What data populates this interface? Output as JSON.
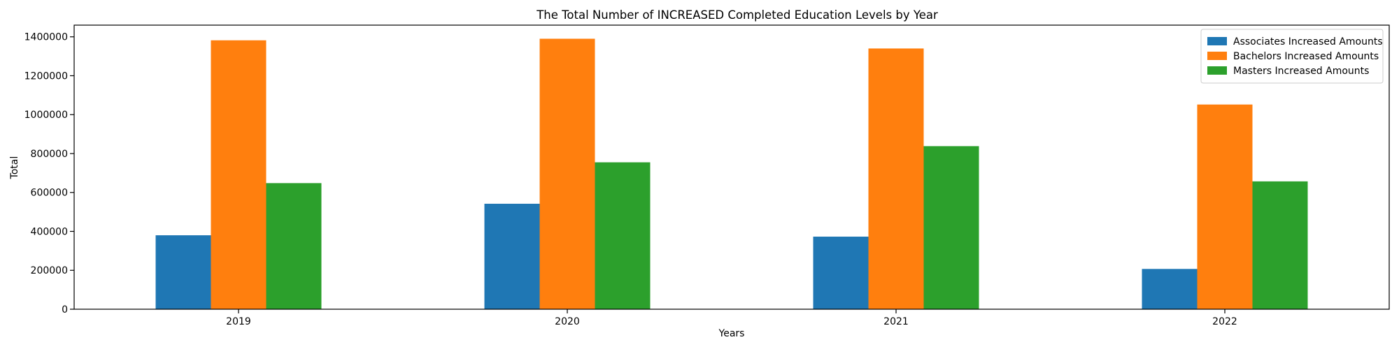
{
  "chart_data": {
    "type": "bar",
    "title": "The Total Number of INCREASED Completed Education Levels by Year",
    "xlabel": "Years",
    "ylabel": "Total",
    "categories": [
      "2019",
      "2020",
      "2021",
      "2022"
    ],
    "series": [
      {
        "name": "Associates Increased Amounts",
        "color": "#1f77b4",
        "values": [
          380000,
          542000,
          373000,
          207000
        ]
      },
      {
        "name": "Bachelors Increased Amounts",
        "color": "#ff7f0e",
        "values": [
          1382000,
          1390000,
          1340000,
          1052000
        ]
      },
      {
        "name": "Masters Increased Amounts",
        "color": "#2ca02c",
        "values": [
          648000,
          755000,
          838000,
          657000
        ]
      }
    ],
    "ylim": [
      0,
      1460000
    ],
    "yticks": [
      0,
      200000,
      400000,
      600000,
      800000,
      1000000,
      1200000,
      1400000
    ],
    "grid": false,
    "legend_position": "top-right"
  }
}
